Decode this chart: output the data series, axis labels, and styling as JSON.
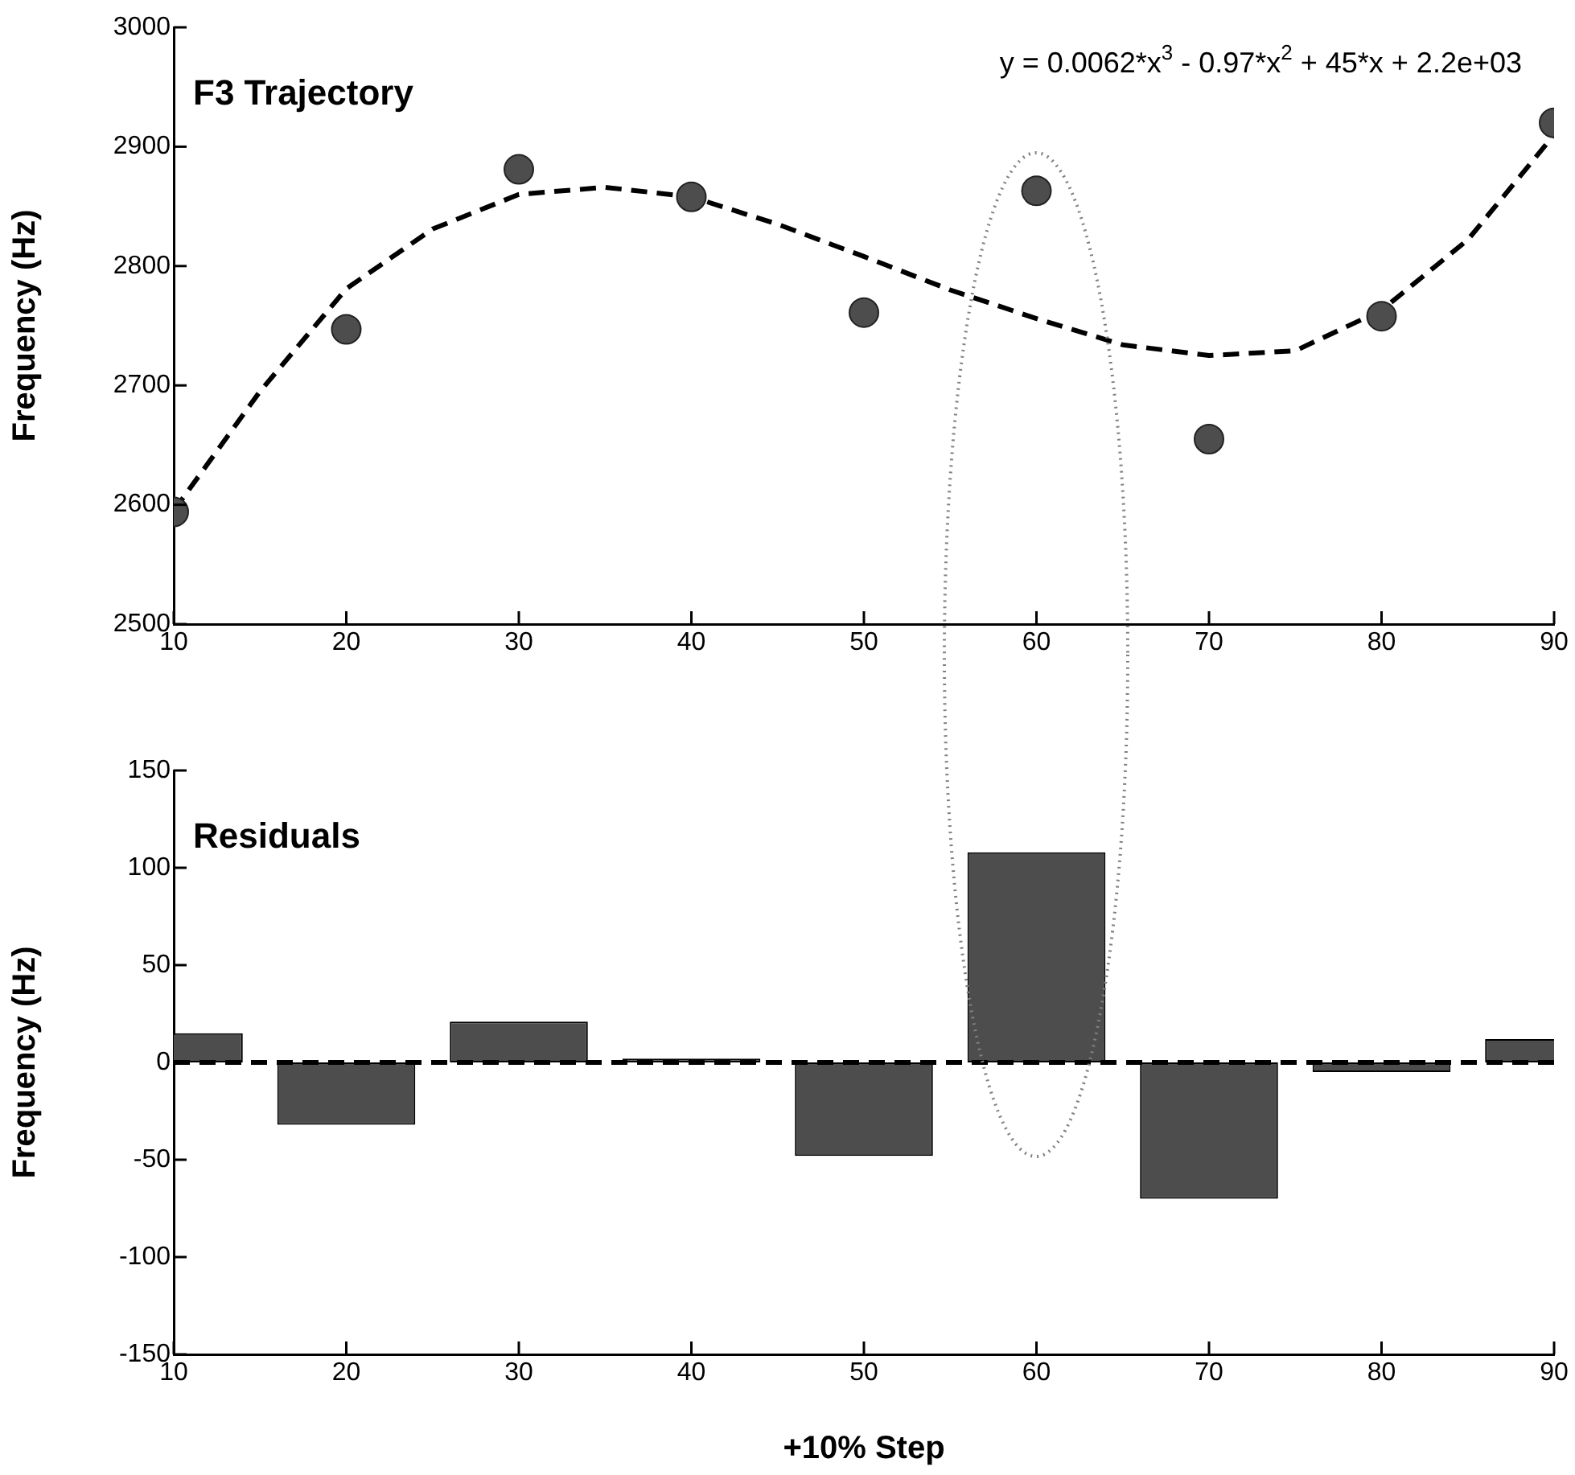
{
  "chart_data": [
    {
      "type": "scatter",
      "title": "F3 Trajectory",
      "ylabel": "Frequency (Hz)",
      "annotations": [
        "y = 0.0062*x$^{3}$ - 0.97*x$^{2}$ + 45*x + 2.2e+03"
      ],
      "x": [
        10,
        20,
        30,
        40,
        50,
        60,
        70,
        80,
        90
      ],
      "series": [
        {
          "type": "scatter",
          "color": "#4d4d4d",
          "marker": "circle",
          "values": [
            2594,
            2747,
            2881,
            2858,
            2761,
            2863,
            2655,
            2758,
            2920
          ]
        },
        {
          "type": "line",
          "color": "#000000",
          "line_style": "dashed",
          "marker": "none",
          "x": [
            10,
            15,
            20,
            25,
            30,
            35,
            40,
            45,
            50,
            55,
            60,
            65,
            70,
            75,
            80,
            85,
            90
          ],
          "values": [
            2595,
            2695,
            2781,
            2831,
            2860,
            2866,
            2858,
            2835,
            2808,
            2780,
            2756,
            2734,
            2725,
            2729,
            2763,
            2822,
            2910
          ]
        }
      ],
      "xlim": [
        10,
        90
      ],
      "xticks": [
        10,
        20,
        30,
        40,
        50,
        60,
        70,
        80,
        90
      ],
      "ylim": [
        2500,
        3000
      ],
      "yticks": [
        2500,
        2600,
        2700,
        2800,
        2900,
        3000
      ],
      "grid": false,
      "legend": false
    },
    {
      "type": "bar",
      "title": "Residuals",
      "xlabel": "+10% Step",
      "ylabel": "Frequency (Hz)",
      "x": [
        10,
        20,
        30,
        40,
        50,
        60,
        70,
        80,
        90
      ],
      "values": [
        15,
        -32,
        21,
        2,
        -48,
        108,
        -70,
        -5,
        12
      ],
      "color": "#4d4d4d",
      "xlim": [
        10,
        90
      ],
      "xticks": [
        10,
        20,
        30,
        40,
        50,
        60,
        70,
        80,
        90
      ],
      "ylim": [
        -150,
        150
      ],
      "yticks": [
        -150,
        -100,
        -50,
        0,
        50,
        100,
        150
      ],
      "ref_lines": [
        {
          "axis": "y",
          "value": 0,
          "color": "#000000",
          "line_style": "dashed"
        }
      ],
      "grid": false,
      "legend": false
    }
  ]
}
